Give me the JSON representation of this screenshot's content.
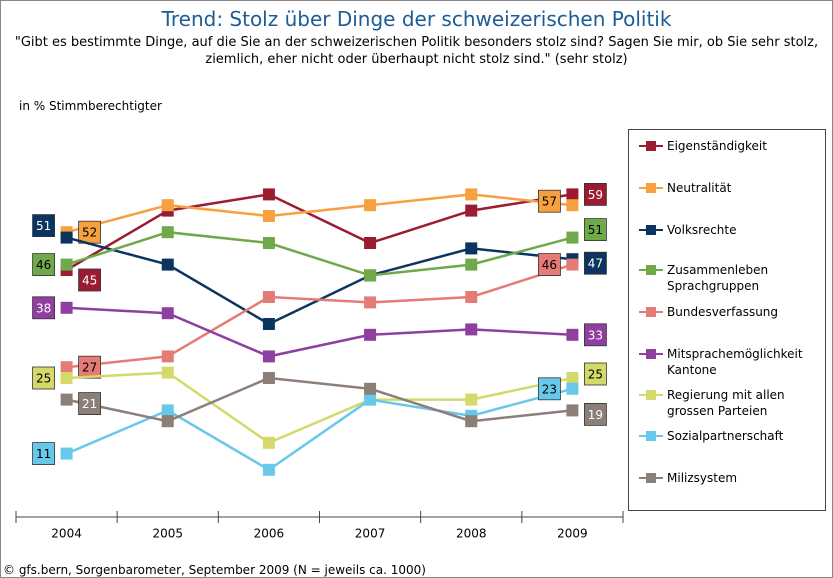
{
  "chart_data": {
    "type": "line",
    "title": "Trend: Stolz über Dinge der schweizerischen Politik",
    "subtitle": "\"Gibt es bestimmte Dinge, auf die Sie an der schweizerischen Politik besonders stolz sind? Sagen Sie mir, ob Sie  sehr stolz, ziemlich, eher nicht oder überhaupt nicht stolz sind.\" (sehr stolz)",
    "y_label": "in % Stimmberechtigter",
    "source": "© gfs.bern, Sorgenbarometer, September 2009 (N = jeweils ca. 1000)",
    "categories": [
      "2004",
      "2005",
      "2006",
      "2007",
      "2008",
      "2009"
    ],
    "ylim": [
      0,
      70
    ],
    "series": [
      {
        "name": "Eigenständigkeit",
        "color": "#9b1b30",
        "values": [
          45,
          56,
          59,
          50,
          56,
          59
        ]
      },
      {
        "name": "Neutralität",
        "color": "#f7a040",
        "values": [
          52,
          57,
          55,
          57,
          59,
          57
        ]
      },
      {
        "name": "Volksrechte",
        "color": "#0b3560",
        "values": [
          51,
          46,
          35,
          44,
          49,
          47
        ]
      },
      {
        "name": "Zusammenleben Sprachgruppen",
        "color": "#6fa94a",
        "values": [
          46,
          52,
          50,
          44,
          46,
          51
        ]
      },
      {
        "name": "Bundesverfassung",
        "color": "#e57b76",
        "values": [
          27,
          29,
          40,
          39,
          40,
          46
        ]
      },
      {
        "name": "Mitsprachemöglichkeit Kantone",
        "color": "#8e3fa0",
        "values": [
          38,
          37,
          29,
          33,
          34,
          33
        ]
      },
      {
        "name": "Regierung mit allen grossen Parteien",
        "color": "#d4d96a",
        "values": [
          25,
          26,
          13,
          21,
          21,
          25
        ]
      },
      {
        "name": "Sozialpartnerschaft",
        "color": "#68c8ea",
        "values": [
          11,
          19,
          8,
          21,
          18,
          23
        ]
      },
      {
        "name": "Milizsystem",
        "color": "#8b7f78",
        "values": [
          21,
          17,
          25,
          23,
          17,
          19
        ]
      }
    ]
  }
}
